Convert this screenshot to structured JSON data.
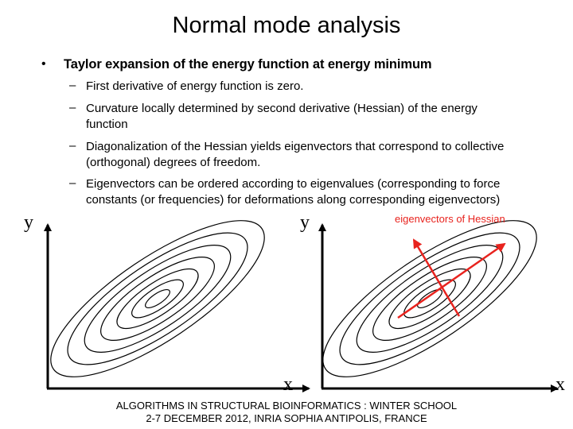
{
  "header": {
    "title": "Normal mode analysis"
  },
  "bullets": [
    {
      "text": "Taylor expansion of the energy function at energy minimum",
      "sub": [
        "First derivative of energy function is zero.",
        "Curvature locally determined by second derivative (Hessian) of the energy function",
        "Diagonalization of the Hessian yields eigenvectors that correspond to collective (orthogonal) degrees of freedom.",
        "Eigenvectors can be ordered according to eigenvalues (corresponding to force constants (or frequencies) for deformations along corresponding eigenvectors)"
      ]
    }
  ],
  "figure": {
    "left_y_label": "y",
    "left_x_label": "x",
    "right_y_label": "y",
    "right_x_label": "x",
    "annotation": "eigenvectors of Hessian"
  },
  "footer": {
    "line1": "ALGORITHMS IN STRUCTURAL BIOINFORMATICS : WINTER SCHOOL",
    "line2": "2-7 DECEMBER 2012, INRIA SOPHIA ANTIPOLIS, FRANCE"
  }
}
